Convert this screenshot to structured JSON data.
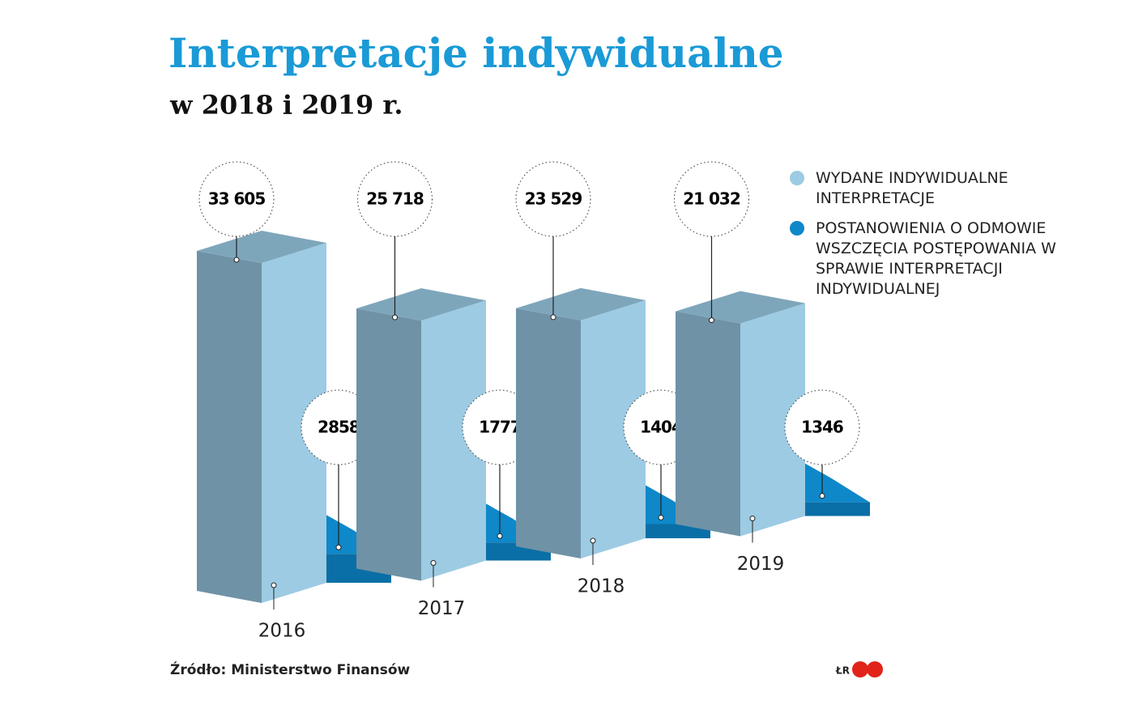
{
  "chart_data": {
    "type": "bar3d",
    "title": "Interpretacje indywidualne",
    "subtitle": "w 2018 i 2019 r.",
    "categories": [
      "2016",
      "2017",
      "2018",
      "2019"
    ],
    "series": [
      {
        "name": "WYDANE INDYWIDUALNE INTERPRETACJE",
        "color": "#9dcbe3",
        "values": [
          33605,
          25718,
          23529,
          21032
        ],
        "value_labels": [
          "33 605",
          "25 718",
          "23 529",
          "21 032"
        ]
      },
      {
        "name": "POSTANOWIENIA O ODMOWIE WSZCZĘCIA POSTĘPOWANIA W SPRAWIE INTERPRETACJI INDYWIDUALNEJ",
        "color": "#0e88c9",
        "values": [
          2858,
          1777,
          1404,
          1346
        ]
      }
    ],
    "source": "Źródło: Ministerstwo Finansów",
    "credit": "ŁR"
  }
}
